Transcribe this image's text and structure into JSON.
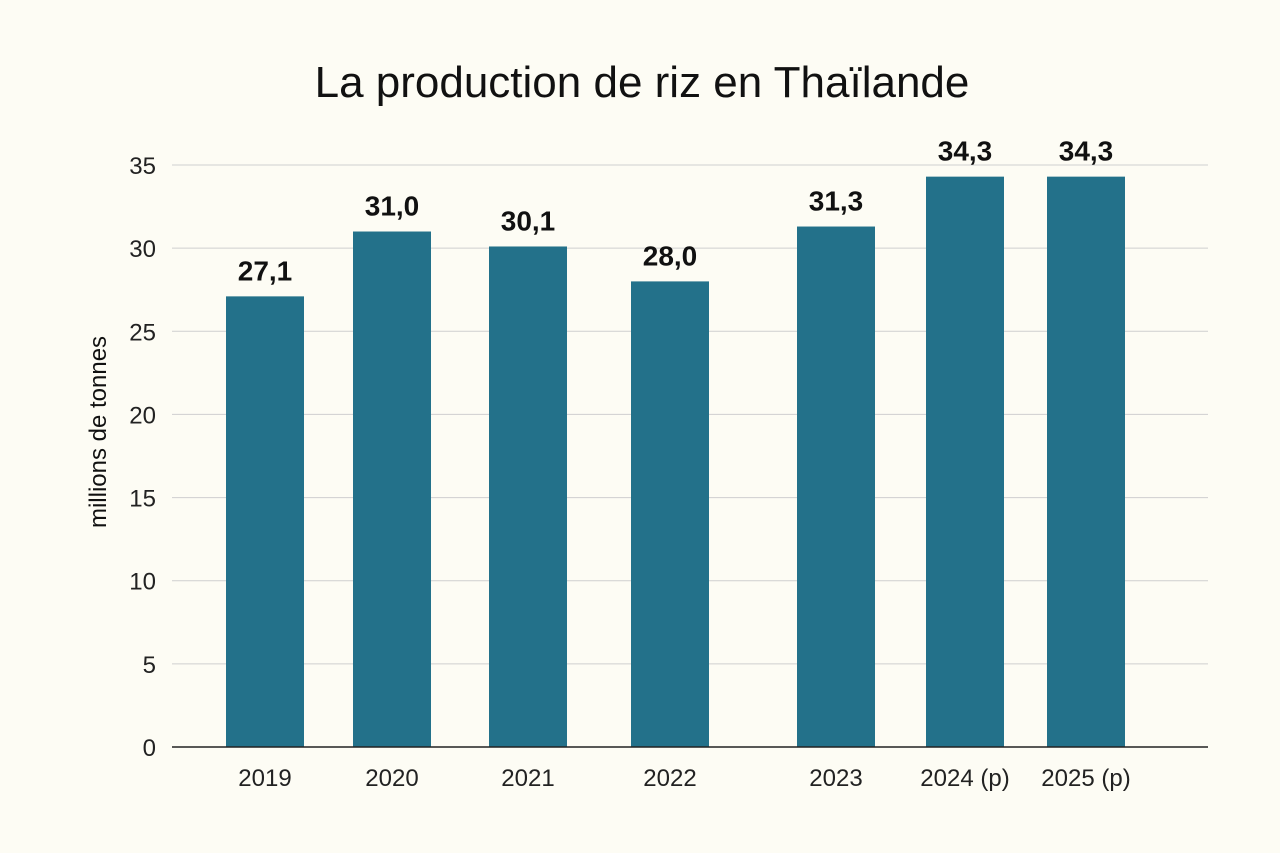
{
  "chart_data": {
    "type": "bar",
    "title": "La production de riz en Thaïlande",
    "xlabel": "",
    "ylabel": "millions de tonnes",
    "categories": [
      "2019",
      "2020",
      "2021",
      "2022",
      "2023",
      "2024 (p)",
      "2025 (p)"
    ],
    "values": [
      27.1,
      31.0,
      30.1,
      28.0,
      31.3,
      34.3,
      34.3
    ],
    "value_labels": [
      "27,1",
      "31,0",
      "30,1",
      "28,0",
      "31,3",
      "34,3",
      "34,3"
    ],
    "ylim": [
      0,
      35
    ],
    "yticks": [
      0,
      5,
      10,
      15,
      20,
      25,
      30,
      35
    ],
    "grid": true,
    "legend": "none",
    "colors": {
      "bar": "#23718a",
      "background": "#fdfcf4",
      "grid": "#cfcfcf",
      "axis": "#222222"
    }
  }
}
